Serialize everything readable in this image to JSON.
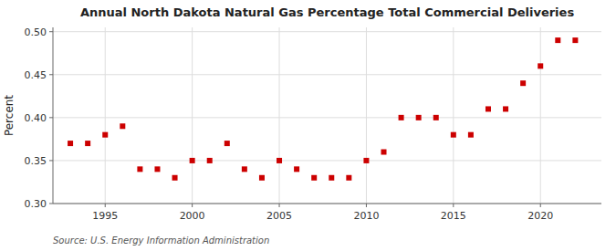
{
  "chart_data": {
    "type": "scatter",
    "title": "Annual North Dakota Natural Gas Percentage Total Commercial Deliveries",
    "ylabel": "Percent",
    "source": "Source: U.S. Energy Information Administration",
    "color": "#cc0000",
    "marker": "square",
    "grid": true,
    "x": [
      1993,
      1994,
      1995,
      1996,
      1997,
      1998,
      1999,
      2000,
      2001,
      2002,
      2003,
      2004,
      2005,
      2006,
      2007,
      2008,
      2009,
      2010,
      2011,
      2012,
      2013,
      2014,
      2015,
      2016,
      2017,
      2018,
      2019,
      2020,
      2021,
      2022
    ],
    "values": [
      0.37,
      0.37,
      0.38,
      0.39,
      0.34,
      0.34,
      0.33,
      0.35,
      0.35,
      0.37,
      0.34,
      0.33,
      0.35,
      0.34,
      0.33,
      0.33,
      0.33,
      0.35,
      0.36,
      0.4,
      0.4,
      0.4,
      0.38,
      0.38,
      0.41,
      0.41,
      0.44,
      0.46,
      0.49,
      0.49
    ],
    "xlim": [
      1992,
      2023.5
    ],
    "ylim": [
      0.3,
      0.505
    ],
    "xticks": [
      1995,
      2000,
      2005,
      2010,
      2015,
      2020
    ],
    "yticks": [
      {
        "value": 0.3,
        "label": "0.30"
      },
      0.35,
      {
        "value": 0.4,
        "label": "0.40"
      },
      0.45,
      {
        "value": 0.5,
        "label": "0.50"
      }
    ]
  }
}
